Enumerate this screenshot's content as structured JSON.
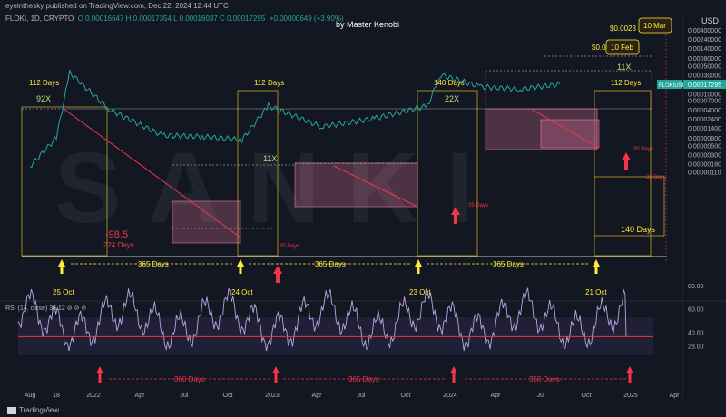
{
  "header": {
    "publisher": "eyeinthesky published on TradingView.com, Dec 22, 2024 12:44 UTC",
    "symbol": "FLOKI, 1D, CRYPTO",
    "ohlc": "O 0.00016647  H 0.00017354  L 0.00016037  C 0.00017295",
    "change": "+0.00000649 (+3.90%)",
    "author": "by Master Kenobi",
    "currency": "USD"
  },
  "rsi_title": "RSI (14, close) 36.12  ⊘  ⊘  ⊘",
  "footer": "TradingView",
  "colors": {
    "background": "#131722",
    "price_line": "#26a69a",
    "annotation_yellow": "#ffeb3b",
    "annotation_red": "#f23645",
    "rsi_line": "#b8a6e0",
    "box_pink": "#e57ba0",
    "watermark_text": "SANKI"
  },
  "chart_data": [
    {
      "type": "line",
      "title": "FLOKI/USD 1D",
      "scale": "log",
      "x_ticks": [
        "Aug",
        "18",
        "2022",
        "Apr",
        "Jul",
        "Oct",
        "2023",
        "Apr",
        "Jul",
        "Oct",
        "2024",
        "Apr",
        "Jul",
        "Oct",
        "2025",
        "Apr"
      ],
      "y_ticks": [
        "0.00400000",
        "0.00240000",
        "0.00140000",
        "0.00080000",
        "0.00050000",
        "0.00030000",
        "0.00017295",
        "0.00010000",
        "0.00007000",
        "0.00004000",
        "0.00002400",
        "0.00001400",
        "0.00000800",
        "0.00000500",
        "0.00000300",
        "0.00000180",
        "0.00000110"
      ],
      "series": [
        {
          "name": "FLOKIUSD",
          "x": [
            "2021-08",
            "2021-10",
            "2021-11",
            "2022-02",
            "2022-06",
            "2022-09",
            "2022-12",
            "2023-02",
            "2023-06",
            "2023-10",
            "2024-02",
            "2024-03",
            "2024-06",
            "2024-09",
            "2024-12"
          ],
          "y": [
            1.5e-06,
            8e-06,
            0.00034,
            4e-05,
            9e-06,
            8.5e-06,
            7e-06,
            5e-05,
            1.5e-05,
            2.4e-05,
            5e-05,
            0.0003,
            0.00015,
            0.00013,
            0.00017295
          ]
        }
      ],
      "annotations": {
        "cycle_top_labels": [
          "112 Days",
          "112 Days",
          "140 Days",
          "112 Days"
        ],
        "multipliers": [
          "92X",
          "11X",
          "22X",
          "11X"
        ],
        "cycle_lengths": [
          "365 Days",
          "365 Days",
          "365 Days"
        ],
        "date_labels": [
          "25 Oct",
          "24 Oct",
          "23 Oct",
          "21 Oct"
        ],
        "decline": "-98.5",
        "decline_days": "224 Days",
        "short_days": [
          "35 Days",
          "35 Days",
          "35 Days",
          "35 Days"
        ],
        "future_days": "140 Days",
        "targets": [
          "$0.0023",
          "$0.0011"
        ],
        "target_dates": [
          "10 Mar",
          "10 Feb"
        ],
        "price_badge": "FLOKIUSD",
        "price_value": "0.00017295"
      }
    },
    {
      "type": "line",
      "title": "RSI (14, close)",
      "y_ticks": [
        "80.00",
        "60.00",
        "40.00",
        "28.00"
      ],
      "ylim": [
        20,
        90
      ],
      "series": [
        {
          "name": "RSI",
          "value": 36.12
        }
      ],
      "annotations": {
        "cycle_lengths": [
          "360 Days",
          "365 Days",
          "350 Days"
        ]
      }
    }
  ]
}
